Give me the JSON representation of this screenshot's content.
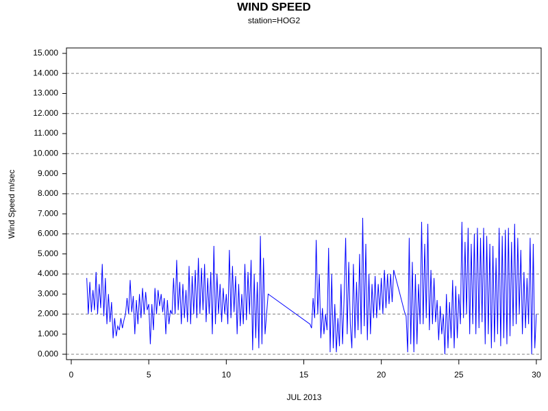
{
  "chart_data": {
    "type": "line",
    "title": "WIND SPEED",
    "subtitle": "station=HOG2",
    "xlabel": "JUL 2013",
    "ylabel": "Wind Speed m/sec",
    "xlim": [
      -0.31,
      30.31
    ],
    "xticks": [
      0,
      5,
      10,
      15,
      20,
      25,
      30
    ],
    "ylim": [
      -0.27,
      15.27
    ],
    "yticks": [
      {
        "value": 0,
        "label": "0.000"
      },
      {
        "value": 1,
        "label": "1.000"
      },
      {
        "value": 2,
        "label": "2.000"
      },
      {
        "value": 3,
        "label": "3.000"
      },
      {
        "value": 4,
        "label": "4.000"
      },
      {
        "value": 5,
        "label": "5.000"
      },
      {
        "value": 6,
        "label": "6.000"
      },
      {
        "value": 7,
        "label": "7.000"
      },
      {
        "value": 8,
        "label": "8.000"
      },
      {
        "value": 9,
        "label": "9.000"
      },
      {
        "value": 10,
        "label": "10.000"
      },
      {
        "value": 11,
        "label": "11.000"
      },
      {
        "value": 12,
        "label": "12.000"
      },
      {
        "value": 13,
        "label": "13.000"
      },
      {
        "value": 14,
        "label": "14.000"
      },
      {
        "value": 15,
        "label": "15.000"
      }
    ],
    "grid": true,
    "grid_every": 2,
    "color": "#0000ff",
    "x": [
      1.0,
      1.1,
      1.2,
      1.3,
      1.4,
      1.5,
      1.6,
      1.7,
      1.8,
      1.9,
      2.0,
      2.1,
      2.2,
      2.3,
      2.4,
      2.5,
      2.6,
      2.7,
      2.8,
      2.9,
      3.0,
      3.1,
      3.2,
      3.3,
      3.4,
      3.5,
      3.6,
      3.7,
      3.8,
      3.9,
      4.0,
      4.1,
      4.2,
      4.3,
      4.4,
      4.5,
      4.6,
      4.7,
      4.8,
      4.9,
      5.0,
      5.1,
      5.2,
      5.3,
      5.4,
      5.5,
      5.6,
      5.7,
      5.8,
      5.9,
      6.0,
      6.1,
      6.2,
      6.3,
      6.4,
      6.5,
      6.6,
      6.7,
      6.8,
      6.9,
      7.0,
      7.1,
      7.2,
      7.3,
      7.4,
      7.5,
      7.6,
      7.7,
      7.8,
      7.9,
      8.0,
      8.1,
      8.2,
      8.3,
      8.4,
      8.5,
      8.6,
      8.7,
      8.8,
      8.9,
      9.0,
      9.1,
      9.2,
      9.3,
      9.4,
      9.5,
      9.6,
      9.7,
      9.8,
      9.9,
      10.0,
      10.1,
      10.2,
      10.3,
      10.4,
      10.5,
      10.6,
      10.7,
      10.8,
      10.9,
      11.0,
      11.1,
      11.2,
      11.3,
      11.4,
      11.5,
      11.6,
      11.7,
      11.8,
      11.9,
      12.0,
      12.1,
      12.2,
      12.3,
      12.4,
      12.5,
      12.6,
      12.7,
      15.4,
      15.5,
      15.6,
      15.7,
      15.8,
      15.9,
      16.0,
      16.1,
      16.2,
      16.3,
      16.4,
      16.5,
      16.6,
      16.7,
      16.8,
      16.9,
      17.0,
      17.1,
      17.2,
      17.3,
      17.4,
      17.5,
      17.6,
      17.7,
      17.8,
      17.9,
      18.0,
      18.1,
      18.2,
      18.3,
      18.4,
      18.5,
      18.6,
      18.7,
      18.8,
      18.9,
      19.0,
      19.1,
      19.2,
      19.3,
      19.4,
      19.5,
      19.6,
      19.7,
      19.8,
      19.9,
      20.0,
      20.1,
      20.2,
      20.3,
      20.4,
      20.5,
      20.6,
      20.7,
      20.8,
      20.9,
      21.0,
      21.1,
      21.2,
      21.3,
      21.4,
      21.5,
      21.6,
      21.7,
      21.8,
      21.9,
      22.0,
      22.1,
      22.2,
      22.3,
      22.4,
      22.5,
      22.6,
      22.7,
      22.8,
      22.9,
      23.0,
      23.1,
      23.2,
      23.3,
      23.4,
      23.5,
      23.6,
      23.7,
      23.8,
      23.9,
      24.0,
      24.1,
      24.2,
      24.3,
      24.4,
      24.5,
      24.6,
      24.7,
      24.8,
      24.9,
      25.0,
      25.1,
      25.2,
      25.3,
      25.4,
      25.5,
      25.6,
      25.7,
      25.8,
      25.9,
      26.0,
      26.1,
      26.2,
      26.3,
      26.4,
      26.5,
      26.6,
      26.7,
      26.8,
      26.9,
      27.0,
      27.1,
      27.2,
      27.3,
      27.4,
      27.5,
      27.6,
      27.7,
      27.8,
      27.9,
      28.0,
      28.1,
      28.2,
      28.3,
      28.4,
      28.5,
      28.6,
      28.7,
      28.8,
      28.9,
      29.0,
      29.1,
      29.2,
      29.3,
      29.4,
      29.5,
      29.6,
      29.7,
      29.8,
      29.9,
      30.0
    ],
    "values": [
      3.8,
      2.0,
      3.6,
      2.1,
      3.2,
      2.2,
      4.1,
      2.0,
      3.5,
      2.3,
      4.5,
      1.9,
      3.8,
      1.5,
      3.0,
      1.6,
      2.6,
      0.8,
      1.8,
      0.9,
      1.4,
      1.2,
      1.8,
      1.3,
      1.7,
      2.0,
      2.8,
      2.0,
      3.7,
      2.1,
      2.9,
      1.0,
      2.7,
      1.5,
      3.0,
      1.8,
      3.3,
      2.0,
      3.1,
      2.2,
      2.5,
      0.5,
      2.5,
      1.2,
      3.3,
      2.0,
      3.2,
      2.4,
      3.0,
      2.1,
      2.8,
      1.0,
      2.7,
      1.5,
      2.2,
      2.0,
      3.8,
      2.0,
      4.7,
      2.2,
      3.6,
      1.5,
      3.5,
      1.8,
      3.2,
      1.6,
      4.4,
      1.5,
      3.9,
      2.0,
      4.2,
      1.8,
      4.8,
      2.0,
      4.3,
      2.2,
      4.5,
      1.6,
      3.8,
      2.0,
      4.1,
      1.0,
      5.4,
      1.5,
      4.0,
      2.0,
      3.5,
      1.6,
      3.3,
      2.0,
      3.0,
      1.5,
      5.2,
      1.8,
      4.4,
      2.1,
      3.9,
      1.0,
      3.5,
      1.4,
      3.0,
      1.5,
      4.5,
      1.7,
      4.1,
      2.0,
      4.7,
      0.2,
      4.0,
      0.8,
      3.6,
      0.3,
      5.9,
      0.5,
      4.8,
      1.0,
      2.0,
      3.0,
      1.5,
      1.3,
      2.8,
      1.8,
      5.7,
      2.0,
      4.0,
      0.8,
      2.3,
      1.0,
      2.0,
      1.2,
      5.3,
      0.1,
      4.0,
      0.3,
      2.5,
      0.1,
      1.8,
      0.4,
      3.5,
      0.5,
      2.8,
      5.8,
      1.0,
      4.6,
      1.5,
      0.3,
      4.5,
      0.8,
      3.6,
      1.2,
      5.0,
      1.0,
      6.8,
      1.4,
      5.5,
      0.7,
      4.0,
      1.0,
      3.5,
      1.8,
      3.9,
      1.8,
      3.5,
      2.2,
      3.8,
      2.0,
      4.2,
      2.3,
      4.0,
      2.5,
      4.0,
      2.6,
      4.2,
      3.9,
      3.6,
      3.3,
      3.0,
      2.7,
      2.4,
      2.1,
      1.9,
      0.1,
      5.8,
      0.5,
      4.6,
      0.1,
      4.0,
      0.5,
      3.5,
      1.5,
      6.6,
      1.5,
      5.5,
      1.8,
      6.5,
      1.2,
      4.2,
      1.5,
      3.8,
      1.6,
      2.7,
      0.7,
      2.4,
      1.0,
      2.0,
      0.0,
      3.0,
      0.3,
      2.6,
      0.8,
      3.7,
      0.3,
      3.4,
      0.8,
      3.0,
      1.5,
      6.6,
      1.8,
      5.6,
      2.0,
      6.3,
      1.0,
      5.5,
      1.5,
      6.0,
      1.0,
      6.3,
      1.3,
      5.8,
      1.6,
      6.3,
      0.5,
      5.9,
      1.0,
      5.5,
      0.3,
      5.4,
      0.6,
      4.8,
      1.0,
      6.3,
      0.4,
      5.9,
      0.8,
      6.2,
      0.5,
      6.3,
      0.9,
      5.6,
      1.4,
      6.5,
      1.5,
      5.8,
      2.0,
      5.2,
      1.0,
      4.1,
      1.3,
      3.8,
      1.5,
      5.8,
      0.0,
      5.5,
      0.3,
      2.0
    ]
  }
}
